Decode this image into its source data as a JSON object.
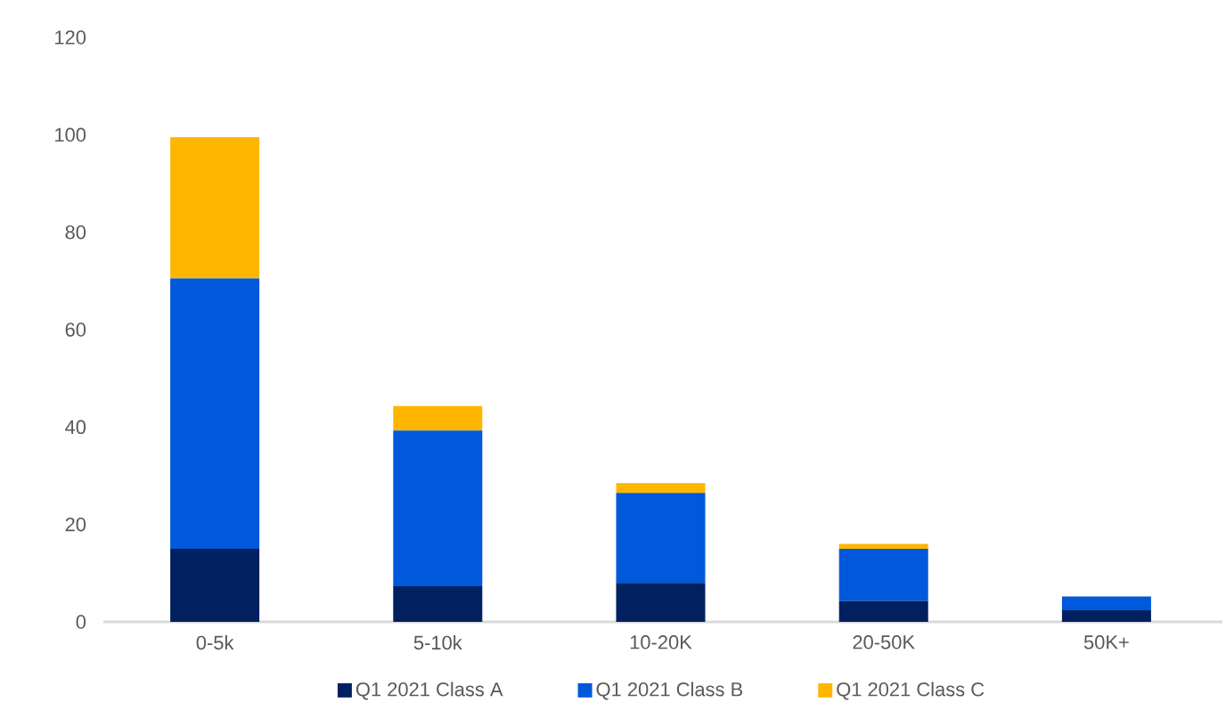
{
  "chart_data": {
    "type": "bar",
    "stacked": true,
    "categories": [
      "0-5k",
      "5-10k",
      "10-20K",
      "20-50K",
      "50K+"
    ],
    "series": [
      {
        "name": "Q1 2021 Class A",
        "color": "#002060",
        "values": [
          15,
          7.3,
          8,
          4.3,
          2.4
        ]
      },
      {
        "name": "Q1 2021 Class B",
        "color": "#0058DB",
        "values": [
          55.5,
          32,
          18.5,
          10.7,
          2.8
        ]
      },
      {
        "name": "Q1 2021 Class C",
        "color": "#FFB600",
        "values": [
          29,
          5,
          2,
          1,
          0
        ]
      }
    ],
    "ylim": [
      0,
      120
    ],
    "yticks": [
      0,
      20,
      40,
      60,
      80,
      100,
      120
    ],
    "legend": "bottom"
  }
}
